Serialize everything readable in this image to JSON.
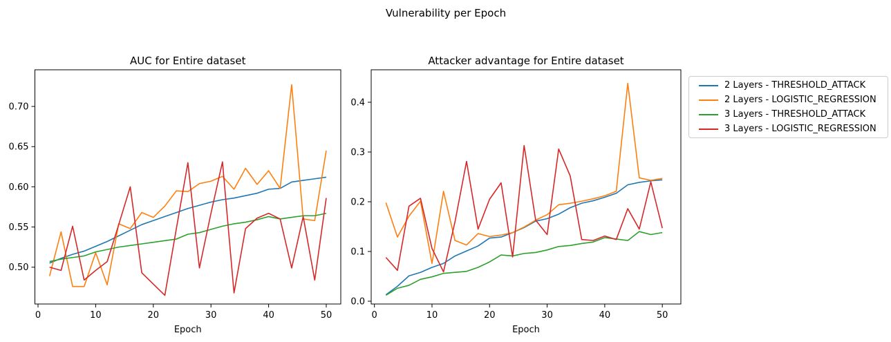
{
  "figure": {
    "suptitle": "Vulnerability per Epoch",
    "background": "#ffffff",
    "text_color": "#000000"
  },
  "legend": {
    "position": "outside-right",
    "entries": [
      {
        "label": "2 Layers - THRESHOLD_ATTACK",
        "color": "#1f77b4"
      },
      {
        "label": "2 Layers - LOGISTIC_REGRESSION",
        "color": "#ff7f0e"
      },
      {
        "label": "3 Layers - THRESHOLD_ATTACK",
        "color": "#2ca02c"
      },
      {
        "label": "3 Layers - LOGISTIC_REGRESSION",
        "color": "#d62728"
      }
    ]
  },
  "chart_data": [
    {
      "type": "line",
      "title": "AUC for Entire dataset",
      "xlabel": "Epoch",
      "grid": false,
      "x": [
        2,
        4,
        6,
        8,
        10,
        12,
        14,
        16,
        18,
        20,
        22,
        24,
        26,
        28,
        30,
        32,
        34,
        36,
        38,
        40,
        42,
        44,
        46,
        48,
        50
      ],
      "xlim": [
        -0.54,
        52.52
      ],
      "ylim": [
        0.4542,
        0.7456
      ],
      "xticks": {
        "values": [
          0,
          10,
          20,
          30,
          40,
          50
        ],
        "labels": [
          "0",
          "10",
          "20",
          "30",
          "40",
          "50"
        ]
      },
      "yticks": {
        "values": [
          0.5,
          0.55,
          0.6,
          0.65,
          0.7
        ],
        "labels": [
          "0.50",
          "0.55",
          "0.60",
          "0.65",
          "0.70"
        ]
      },
      "series": [
        {
          "name": "2 Layers - THRESHOLD_ATTACK",
          "color": "#1f77b4",
          "values": [
            0.505,
            0.511,
            0.516,
            0.52,
            0.526,
            0.532,
            0.539,
            0.546,
            0.553,
            0.558,
            0.563,
            0.568,
            0.573,
            0.577,
            0.581,
            0.584,
            0.586,
            0.589,
            0.592,
            0.597,
            0.598,
            0.606,
            0.608,
            0.61,
            0.612
          ]
        },
        {
          "name": "2 Layers - LOGISTIC_REGRESSION",
          "color": "#ff7f0e",
          "values": [
            0.489,
            0.544,
            0.476,
            0.476,
            0.518,
            0.478,
            0.554,
            0.548,
            0.568,
            0.562,
            0.576,
            0.595,
            0.594,
            0.604,
            0.607,
            0.613,
            0.597,
            0.623,
            0.603,
            0.62,
            0.598,
            0.727,
            0.56,
            0.558,
            0.645
          ]
        },
        {
          "name": "3 Layers - THRESHOLD_ATTACK",
          "color": "#2ca02c",
          "values": [
            0.507,
            0.51,
            0.512,
            0.514,
            0.519,
            0.522,
            0.525,
            0.527,
            0.529,
            0.531,
            0.533,
            0.535,
            0.541,
            0.543,
            0.547,
            0.551,
            0.554,
            0.556,
            0.559,
            0.563,
            0.56,
            0.562,
            0.564,
            0.564,
            0.567
          ]
        },
        {
          "name": "3 Layers - LOGISTIC_REGRESSION",
          "color": "#d62728",
          "values": [
            0.5,
            0.496,
            0.551,
            0.484,
            0.496,
            0.507,
            0.553,
            0.6,
            0.493,
            0.479,
            0.465,
            0.548,
            0.63,
            0.499,
            0.567,
            0.631,
            0.468,
            0.548,
            0.561,
            0.567,
            0.56,
            0.499,
            0.563,
            0.484,
            0.586
          ]
        }
      ]
    },
    {
      "type": "line",
      "title": "Attacker advantage for Entire dataset",
      "xlabel": "Epoch",
      "grid": false,
      "x": [
        2,
        4,
        6,
        8,
        10,
        12,
        14,
        16,
        18,
        20,
        22,
        24,
        26,
        28,
        30,
        32,
        34,
        36,
        38,
        40,
        42,
        44,
        46,
        48,
        50
      ],
      "xlim": [
        -0.56,
        53.22
      ],
      "ylim": [
        -0.0056,
        0.4653
      ],
      "xticks": {
        "values": [
          0,
          10,
          20,
          30,
          40,
          50
        ],
        "labels": [
          "0",
          "10",
          "20",
          "30",
          "40",
          "50"
        ]
      },
      "yticks": {
        "values": [
          0.0,
          0.1,
          0.2,
          0.3,
          0.4
        ],
        "labels": [
          "0.0",
          "0.1",
          "0.2",
          "0.3",
          "0.4"
        ]
      },
      "series": [
        {
          "name": "2 Layers - THRESHOLD_ATTACK",
          "color": "#1f77b4",
          "values": [
            0.013,
            0.03,
            0.051,
            0.058,
            0.068,
            0.076,
            0.091,
            0.101,
            0.111,
            0.127,
            0.129,
            0.138,
            0.148,
            0.161,
            0.166,
            0.175,
            0.188,
            0.197,
            0.202,
            0.209,
            0.217,
            0.234,
            0.239,
            0.242,
            0.244
          ]
        },
        {
          "name": "2 Layers - LOGISTIC_REGRESSION",
          "color": "#ff7f0e",
          "values": [
            0.198,
            0.129,
            0.171,
            0.201,
            0.076,
            0.221,
            0.122,
            0.113,
            0.136,
            0.13,
            0.133,
            0.138,
            0.149,
            0.163,
            0.174,
            0.194,
            0.197,
            0.201,
            0.206,
            0.212,
            0.221,
            0.438,
            0.248,
            0.243,
            0.247
          ]
        },
        {
          "name": "3 Layers - THRESHOLD_ATTACK",
          "color": "#2ca02c",
          "values": [
            0.012,
            0.026,
            0.032,
            0.044,
            0.049,
            0.056,
            0.058,
            0.06,
            0.068,
            0.079,
            0.093,
            0.091,
            0.096,
            0.098,
            0.103,
            0.11,
            0.112,
            0.116,
            0.119,
            0.128,
            0.125,
            0.122,
            0.14,
            0.134,
            0.138
          ]
        },
        {
          "name": "3 Layers - LOGISTIC_REGRESSION",
          "color": "#d62728",
          "values": [
            0.088,
            0.062,
            0.191,
            0.207,
            0.106,
            0.059,
            0.16,
            0.281,
            0.145,
            0.205,
            0.238,
            0.089,
            0.313,
            0.163,
            0.134,
            0.306,
            0.252,
            0.124,
            0.122,
            0.131,
            0.124,
            0.186,
            0.145,
            0.24,
            0.147
          ]
        }
      ]
    }
  ]
}
